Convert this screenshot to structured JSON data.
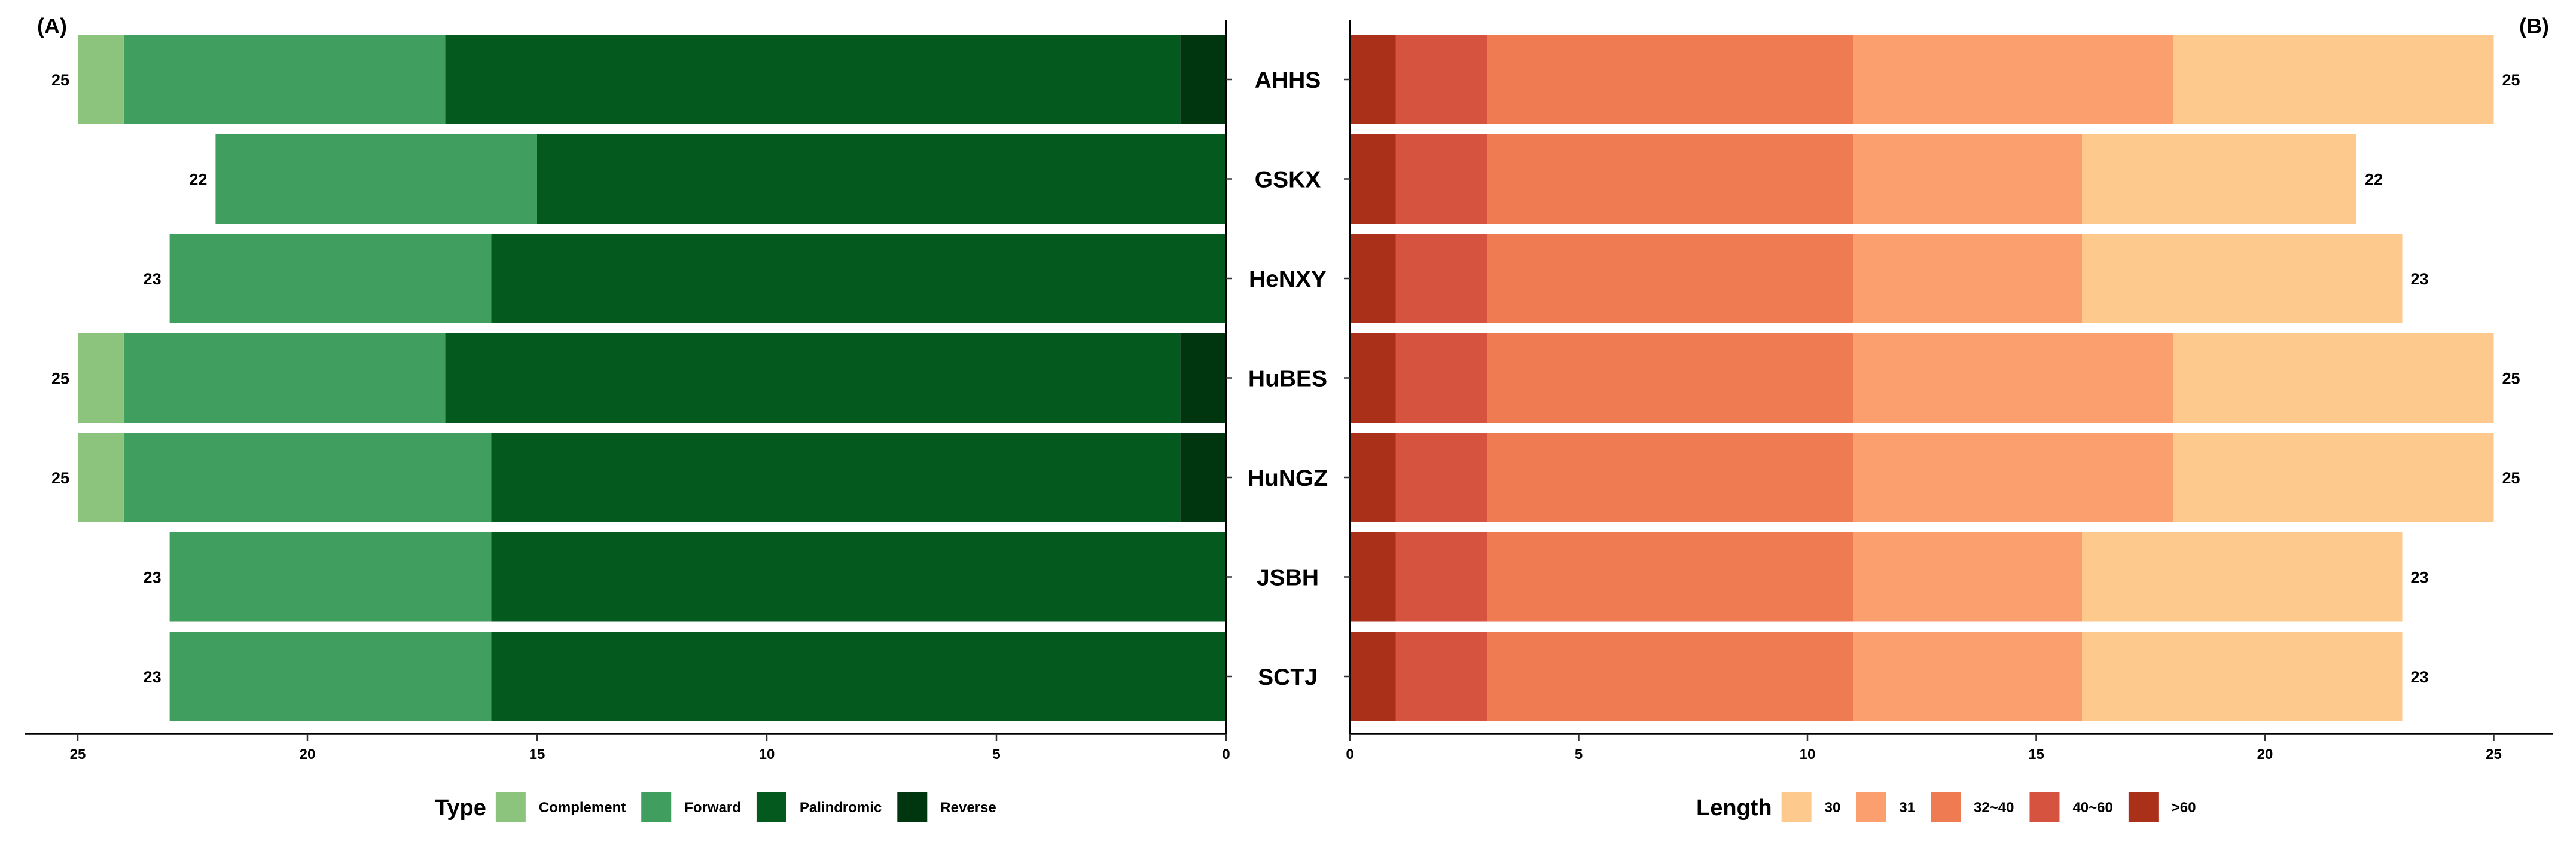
{
  "chart_data": [
    {
      "panel_label": "(A)",
      "type": "bar",
      "orientation": "horizontal",
      "stacked": true,
      "x_direction": "reversed",
      "xlim": [
        0,
        25
      ],
      "x_ticks": [
        25,
        20,
        15,
        10,
        5,
        0
      ],
      "categories": [
        "AHHS",
        "GSKX",
        "HeNXY",
        "HuBES",
        "HuNGZ",
        "JSBH",
        "SCTJ"
      ],
      "totals": [
        25,
        22,
        23,
        25,
        25,
        23,
        23
      ],
      "legend_title": "Type",
      "series": [
        {
          "name": "Reverse",
          "color": "#00360f",
          "values": [
            1,
            0,
            0,
            1,
            1,
            0,
            0
          ]
        },
        {
          "name": "Palindromic",
          "color": "#03591e",
          "values": [
            16,
            15,
            16,
            16,
            15,
            16,
            16
          ]
        },
        {
          "name": "Forward",
          "color": "#409e5e",
          "values": [
            7,
            7,
            7,
            7,
            8,
            7,
            7
          ]
        },
        {
          "name": "Complement",
          "color": "#8cc47e",
          "values": [
            1,
            0,
            0,
            1,
            1,
            0,
            0
          ]
        }
      ],
      "legend_order": [
        "Complement",
        "Forward",
        "Palindromic",
        "Reverse"
      ]
    },
    {
      "panel_label": "(B)",
      "type": "bar",
      "orientation": "horizontal",
      "stacked": true,
      "xlim": [
        0,
        25
      ],
      "x_ticks": [
        0,
        5,
        10,
        15,
        20,
        25
      ],
      "categories": [
        "AHHS",
        "GSKX",
        "HeNXY",
        "HuBES",
        "HuNGZ",
        "JSBH",
        "SCTJ"
      ],
      "totals": [
        25,
        22,
        23,
        25,
        25,
        23,
        23
      ],
      "legend_title": "Length",
      "series": [
        {
          "name": ">60",
          "color": "#ab3019",
          "values": [
            1,
            1,
            1,
            1,
            1,
            1,
            1
          ]
        },
        {
          "name": "40~60",
          "color": "#d5533f",
          "values": [
            2,
            2,
            2,
            2,
            2,
            2,
            2
          ]
        },
        {
          "name": "32~40",
          "color": "#ee7b52",
          "values": [
            8,
            8,
            8,
            8,
            8,
            8,
            8
          ]
        },
        {
          "name": "31",
          "color": "#fb9f6e",
          "values": [
            7,
            5,
            5,
            7,
            7,
            5,
            5
          ]
        },
        {
          "name": "30",
          "color": "#fdc98c",
          "values": [
            7,
            6,
            7,
            7,
            7,
            7,
            7
          ]
        }
      ],
      "legend_order": [
        "30",
        "31",
        "32~40",
        "40~60",
        ">60"
      ]
    }
  ]
}
